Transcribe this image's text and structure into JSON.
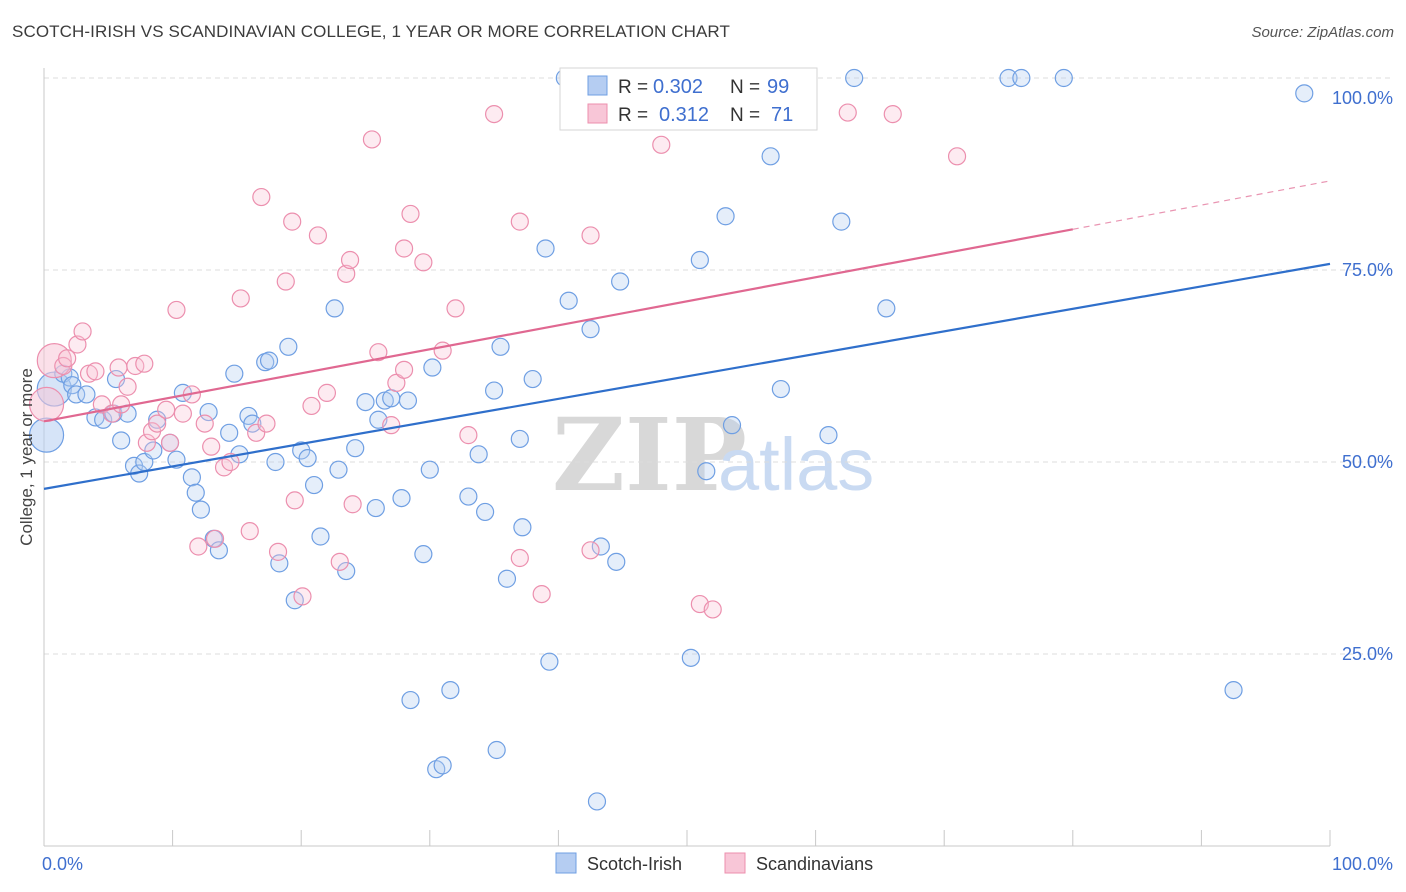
{
  "title": "SCOTCH-IRISH VS SCANDINAVIAN COLLEGE, 1 YEAR OR MORE CORRELATION CHART",
  "source": "Source: ZipAtlas.com",
  "watermark": {
    "zip": "ZIP",
    "atlas": "atlas"
  },
  "colors": {
    "blue": "#6f9fe3",
    "blue_fill": "#b5cdf2",
    "blue_line": "#2f6fcb",
    "pink": "#ec8fae",
    "pink_fill": "#f8c6d7",
    "pink_line": "#e06891",
    "grid": "#dcdcdc",
    "axis_text": "#3f6fcf"
  },
  "legend": {
    "r_label": "R =",
    "n_label": "N =",
    "rows": [
      {
        "series": "Scotch-Irish",
        "r": "0.302",
        "n": "99"
      },
      {
        "series": "Scandinavians",
        "r": "0.312",
        "n": "71"
      }
    ]
  },
  "chart_data": {
    "type": "scatter",
    "xlabel": "",
    "ylabel": "College, 1 year or more",
    "xlim": [
      0,
      100
    ],
    "ylim": [
      0,
      100
    ],
    "x_tick_labels": [
      "0.0%",
      "100.0%"
    ],
    "y_tick_labels": [
      "25.0%",
      "50.0%",
      "75.0%",
      "100.0%"
    ],
    "y_ticks": [
      25,
      50,
      75,
      100
    ],
    "series": [
      {
        "name": "Scotch-Irish",
        "trend": {
          "x0": 0,
          "y0": 46.5,
          "x1": 100,
          "y1": 75.8
        },
        "points": [
          [
            0.2,
            53.5
          ],
          [
            0.8,
            59.5
          ],
          [
            1.5,
            61.5
          ],
          [
            2.0,
            61.0
          ],
          [
            2.2,
            60.0
          ],
          [
            2.5,
            58.8
          ],
          [
            3.3,
            58.8
          ],
          [
            4.0,
            55.8
          ],
          [
            4.6,
            55.5
          ],
          [
            5.4,
            56.3
          ],
          [
            5.6,
            60.8
          ],
          [
            6.0,
            52.8
          ],
          [
            6.5,
            56.3
          ],
          [
            7.0,
            49.5
          ],
          [
            7.4,
            48.5
          ],
          [
            7.8,
            50.0
          ],
          [
            8.5,
            51.5
          ],
          [
            8.8,
            55.5
          ],
          [
            9.8,
            52.5
          ],
          [
            10.3,
            50.3
          ],
          [
            10.8,
            59.0
          ],
          [
            11.5,
            48.0
          ],
          [
            11.8,
            46.0
          ],
          [
            12.2,
            43.8
          ],
          [
            12.8,
            56.5
          ],
          [
            13.2,
            40.0
          ],
          [
            13.6,
            38.5
          ],
          [
            14.4,
            53.8
          ],
          [
            14.8,
            61.5
          ],
          [
            15.2,
            51.0
          ],
          [
            15.9,
            56.0
          ],
          [
            16.2,
            55.0
          ],
          [
            17.2,
            63.0
          ],
          [
            17.5,
            63.2
          ],
          [
            18.0,
            50.0
          ],
          [
            18.3,
            36.8
          ],
          [
            19.0,
            65.0
          ],
          [
            19.5,
            32.0
          ],
          [
            20.0,
            51.5
          ],
          [
            20.5,
            50.5
          ],
          [
            21.0,
            47.0
          ],
          [
            21.5,
            40.3
          ],
          [
            22.6,
            70.0
          ],
          [
            22.9,
            49.0
          ],
          [
            23.5,
            35.8
          ],
          [
            24.2,
            51.8
          ],
          [
            25.0,
            57.8
          ],
          [
            25.8,
            44.0
          ],
          [
            26.0,
            55.5
          ],
          [
            26.5,
            58.0
          ],
          [
            27.0,
            58.3
          ],
          [
            27.8,
            45.3
          ],
          [
            28.3,
            58.0
          ],
          [
            28.5,
            19.0
          ],
          [
            29.5,
            38.0
          ],
          [
            30.0,
            49.0
          ],
          [
            30.2,
            62.3
          ],
          [
            30.5,
            10.0
          ],
          [
            31.0,
            10.5
          ],
          [
            31.6,
            20.3
          ],
          [
            33.0,
            45.5
          ],
          [
            33.8,
            51.0
          ],
          [
            34.3,
            43.5
          ],
          [
            35.0,
            59.3
          ],
          [
            35.2,
            12.5
          ],
          [
            35.5,
            65.0
          ],
          [
            36.0,
            34.8
          ],
          [
            37.0,
            53.0
          ],
          [
            37.2,
            41.5
          ],
          [
            38.0,
            60.8
          ],
          [
            39.0,
            77.8
          ],
          [
            39.3,
            24.0
          ],
          [
            40.5,
            100.0
          ],
          [
            40.8,
            71.0
          ],
          [
            42.5,
            67.3
          ],
          [
            43.0,
            5.8
          ],
          [
            43.3,
            39.0
          ],
          [
            44.5,
            37.0
          ],
          [
            44.8,
            73.5
          ],
          [
            48.5,
            100.0
          ],
          [
            50.3,
            24.5
          ],
          [
            51.0,
            76.3
          ],
          [
            51.5,
            48.8
          ],
          [
            53.0,
            82.0
          ],
          [
            53.5,
            54.8
          ],
          [
            56.5,
            89.8
          ],
          [
            57.3,
            59.5
          ],
          [
            61.0,
            53.5
          ],
          [
            62.0,
            81.3
          ],
          [
            63.0,
            100.0
          ],
          [
            65.5,
            70.0
          ],
          [
            75.0,
            100.0
          ],
          [
            76.0,
            100.0
          ],
          [
            79.3,
            100.0
          ],
          [
            92.5,
            20.3
          ],
          [
            98.0,
            98.0
          ]
        ]
      },
      {
        "name": "Scandinavians",
        "trend": {
          "x0": 0,
          "y0": 55.3,
          "x1": 80,
          "y1": 80.3,
          "dash_to_x": 100,
          "dash_to_y": 86.6
        },
        "points": [
          [
            0.2,
            57.5
          ],
          [
            0.8,
            63.2
          ],
          [
            1.5,
            62.5
          ],
          [
            1.8,
            63.5
          ],
          [
            2.6,
            65.3
          ],
          [
            3.0,
            67.0
          ],
          [
            3.5,
            61.5
          ],
          [
            4.0,
            61.8
          ],
          [
            4.5,
            57.5
          ],
          [
            5.3,
            56.3
          ],
          [
            5.8,
            62.3
          ],
          [
            6.0,
            57.5
          ],
          [
            6.5,
            59.8
          ],
          [
            7.1,
            62.5
          ],
          [
            7.8,
            62.8
          ],
          [
            8.0,
            52.5
          ],
          [
            8.4,
            54.0
          ],
          [
            8.8,
            55.0
          ],
          [
            9.5,
            56.8
          ],
          [
            9.8,
            52.5
          ],
          [
            10.3,
            69.8
          ],
          [
            10.8,
            56.3
          ],
          [
            11.5,
            58.8
          ],
          [
            12.0,
            39.0
          ],
          [
            12.5,
            55.0
          ],
          [
            13.0,
            52.0
          ],
          [
            13.3,
            40.0
          ],
          [
            14.0,
            49.3
          ],
          [
            14.5,
            50.0
          ],
          [
            15.3,
            71.3
          ],
          [
            16.0,
            41.0
          ],
          [
            16.5,
            53.8
          ],
          [
            16.9,
            84.5
          ],
          [
            17.3,
            55.0
          ],
          [
            18.2,
            38.3
          ],
          [
            18.8,
            73.5
          ],
          [
            19.3,
            81.3
          ],
          [
            19.5,
            45.0
          ],
          [
            20.1,
            32.5
          ],
          [
            20.8,
            57.3
          ],
          [
            21.3,
            79.5
          ],
          [
            22.0,
            59.0
          ],
          [
            23.0,
            37.0
          ],
          [
            23.5,
            74.5
          ],
          [
            23.8,
            76.3
          ],
          [
            24.0,
            44.5
          ],
          [
            25.5,
            92.0
          ],
          [
            26.0,
            64.3
          ],
          [
            27.0,
            54.8
          ],
          [
            27.4,
            60.3
          ],
          [
            28.0,
            62.0
          ],
          [
            28.0,
            77.8
          ],
          [
            28.5,
            82.3
          ],
          [
            29.5,
            76.0
          ],
          [
            31.0,
            64.5
          ],
          [
            32.0,
            70.0
          ],
          [
            33.0,
            53.5
          ],
          [
            35.0,
            95.3
          ],
          [
            37.0,
            37.5
          ],
          [
            37.0,
            81.3
          ],
          [
            38.7,
            32.8
          ],
          [
            42.5,
            38.5
          ],
          [
            42.5,
            79.5
          ],
          [
            48.0,
            91.3
          ],
          [
            51.0,
            31.5
          ],
          [
            52.0,
            30.8
          ],
          [
            62.5,
            95.5
          ],
          [
            66.0,
            95.3
          ],
          [
            71.0,
            89.8
          ]
        ]
      }
    ]
  },
  "bottom_legend": [
    "Scotch-Irish",
    "Scandinavians"
  ]
}
